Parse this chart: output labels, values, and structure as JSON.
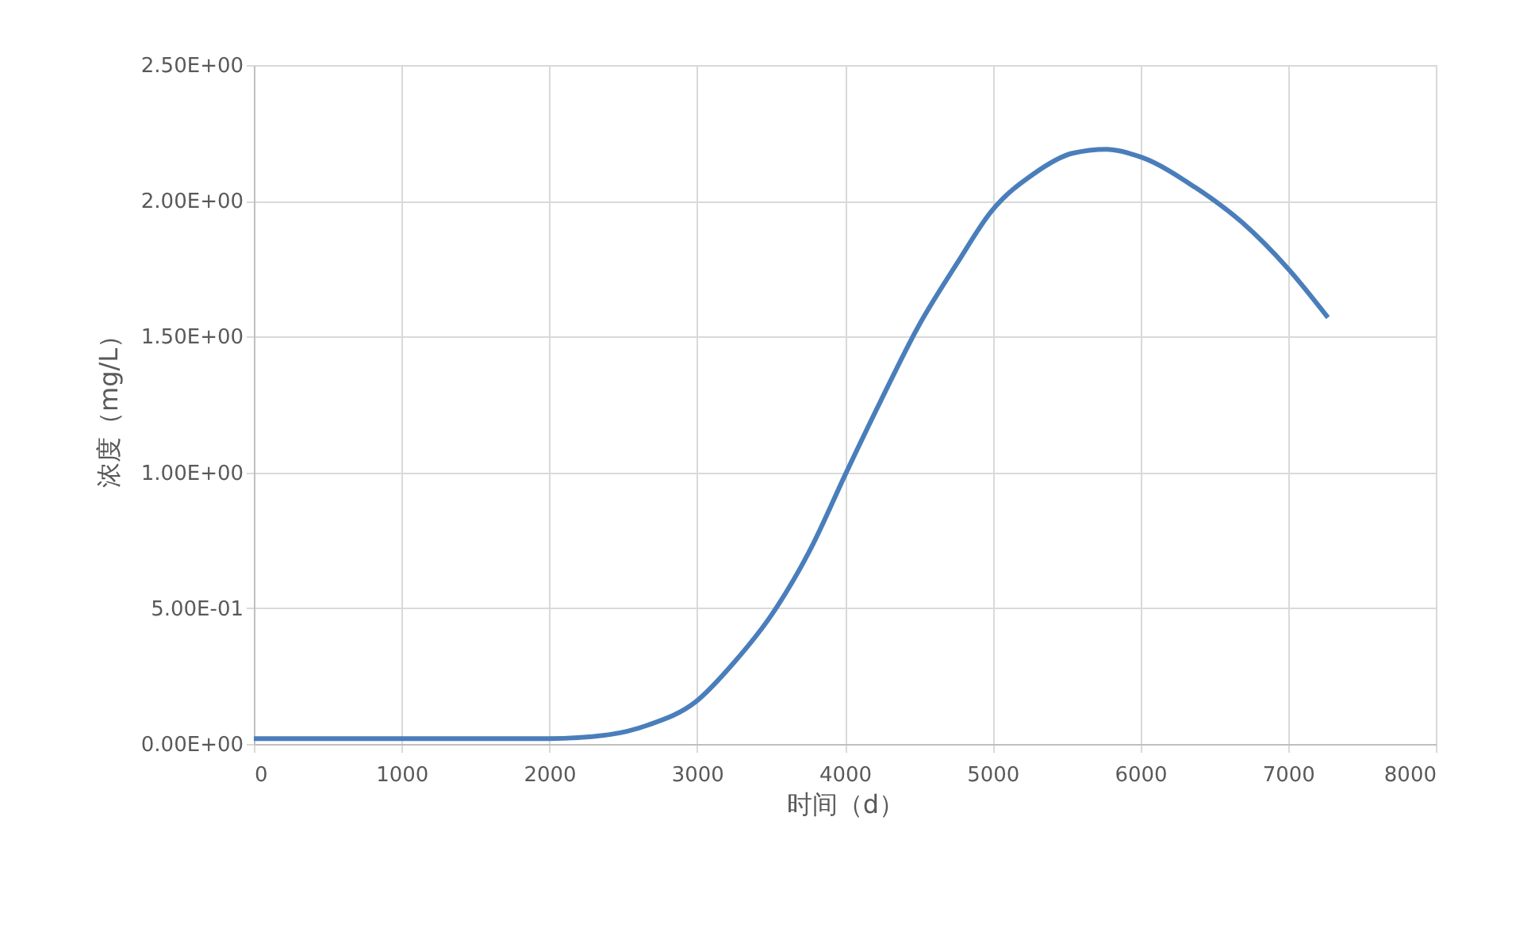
{
  "chart_data": {
    "type": "line",
    "xlabel": "时间（d）",
    "ylabel": "浓度（mg/L）",
    "x": [
      0,
      1000,
      2000,
      2400,
      2670,
      2990,
      3250,
      3510,
      3770,
      4010,
      4240,
      4500,
      4760,
      4990,
      5280,
      5540,
      5770,
      6010,
      6370,
      6690,
      7000,
      7270
    ],
    "series": [
      {
        "color": "#4a7ebb",
        "values": [
          0.02,
          0.02,
          0.02,
          0.034,
          0.07,
          0.155,
          0.3,
          0.48,
          0.72,
          1.0,
          1.26,
          1.54,
          1.77,
          1.96,
          2.1,
          2.175,
          2.19,
          2.16,
          2.05,
          1.92,
          1.75,
          1.57
        ]
      }
    ],
    "xlim": [
      0,
      8000
    ],
    "xticks": [
      0,
      1000,
      2000,
      3000,
      4000,
      5000,
      6000,
      7000,
      8000
    ],
    "ylim": [
      0,
      2.5
    ],
    "yticks": [
      {
        "value": 0,
        "label": "0.00E+00"
      },
      {
        "value": 0.5,
        "label": "5.00E-01"
      },
      {
        "value": 1.0,
        "label": "1.00E+00"
      },
      {
        "value": 1.5,
        "label": "1.50E+00"
      },
      {
        "value": 2.0,
        "label": "2.00E+00"
      },
      {
        "value": 2.5,
        "label": "2.50E+00"
      }
    ],
    "grid": true,
    "marker": "none",
    "line_style": "solid"
  }
}
